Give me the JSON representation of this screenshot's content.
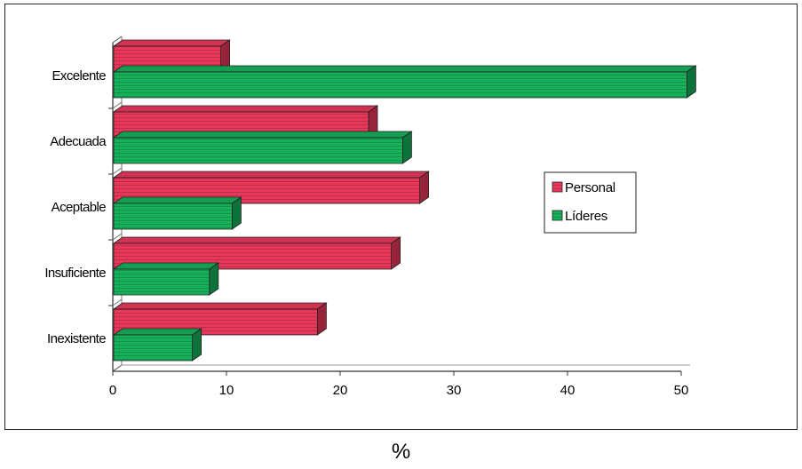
{
  "chart_data": {
    "type": "bar",
    "orientation": "horizontal",
    "categories": [
      "Excelente",
      "Adecuada",
      "Aceptable",
      "Insuficiente",
      "Inexistente"
    ],
    "series": [
      {
        "name": "Personal",
        "values": [
          9.5,
          22.5,
          27,
          24.5,
          18
        ],
        "color": "#e8385a"
      },
      {
        "name": "Líderes",
        "values": [
          50.5,
          25.5,
          10.5,
          8.5,
          7
        ],
        "color": "#17b05a"
      }
    ],
    "xticks": [
      0,
      10,
      20,
      30,
      40,
      50
    ],
    "xlim": [
      0,
      50
    ],
    "xlabel": "%",
    "legend_position": "right",
    "grid": false
  }
}
